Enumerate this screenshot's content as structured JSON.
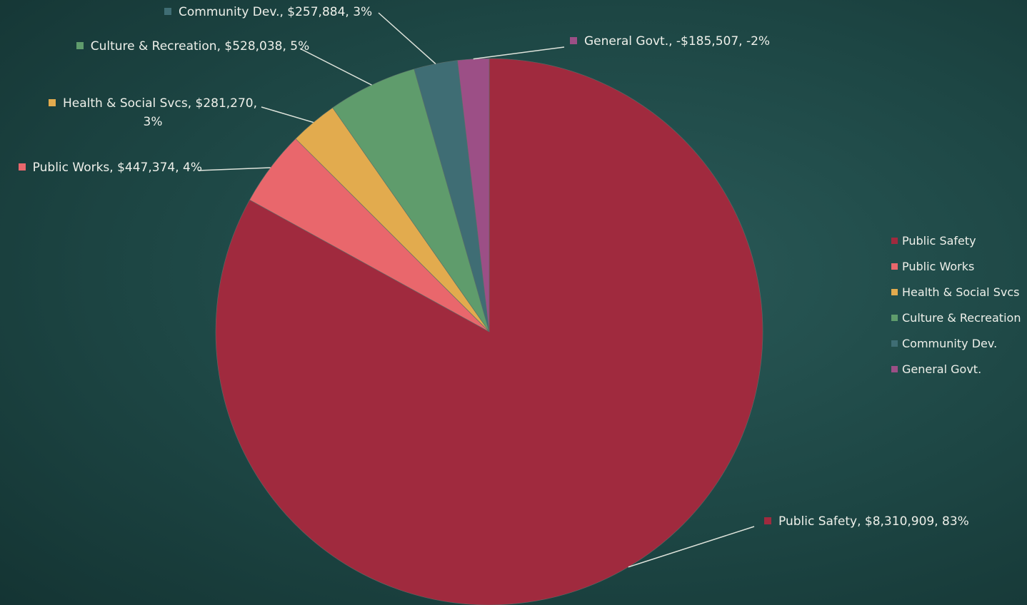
{
  "chart_data": {
    "type": "pie",
    "categories": [
      "Public Safety",
      "Public Works",
      "Health & Social Svcs",
      "Culture & Recreation",
      "Community Dev.",
      "General Govt."
    ],
    "values": [
      8310909,
      447374,
      281270,
      528038,
      257884,
      -185507
    ],
    "value_labels": [
      "Public Safety, $8,310,909, 83%",
      "Public Works, $447,374, 4%",
      "Health & Social Svcs, $281,270, 3%",
      "Culture & Recreation, $528,038, 5%",
      "Community Dev., $257,884, 3%",
      "General Govt., -$185,507, -2%"
    ],
    "colors": [
      "#a02a3e",
      "#e9676c",
      "#e2ab4e",
      "#5f9c6c",
      "#3f6d74",
      "#9c4f86"
    ],
    "legend": "right"
  }
}
